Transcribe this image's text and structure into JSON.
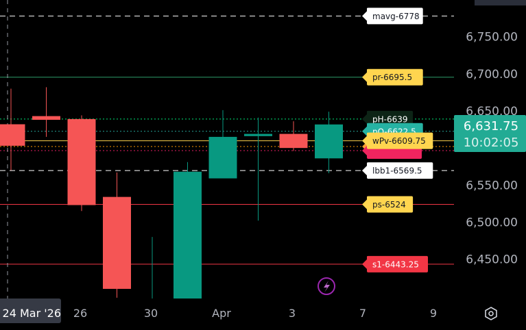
{
  "chart_data": {
    "type": "candlestick",
    "ylim": [
      6400,
      6790
    ],
    "y_ticks": [
      "6,750.00",
      "6,700.00",
      "6,650.00",
      "6,550.00",
      "6,500.00",
      "6,450.00"
    ],
    "y_tick_values": [
      6750,
      6700,
      6650,
      6550,
      6500,
      6450
    ],
    "x_ticks": [
      {
        "label": "26",
        "index": 2
      },
      {
        "label": "30",
        "index": 4
      },
      {
        "label": "Apr",
        "index": 6
      },
      {
        "label": "3",
        "index": 8
      },
      {
        "label": "7",
        "index": 10
      },
      {
        "label": "9",
        "index": 12
      }
    ],
    "crosshair_date": "24 Mar '26",
    "candles": [
      {
        "date": "Mar 24",
        "open": 6632,
        "high": 6680,
        "low": 6570,
        "close": 6603
      },
      {
        "date": "Mar 25",
        "open": 6643,
        "high": 6682,
        "low": 6615,
        "close": 6638
      },
      {
        "date": "Mar 26",
        "open": 6639,
        "high": 6644,
        "low": 6515,
        "close": 6523
      },
      {
        "date": "Mar 27",
        "open": 6534,
        "high": 6567,
        "low": 6398,
        "close": 6410
      },
      {
        "date": "Mar 30",
        "open": 6380,
        "high": 6480,
        "low": 6360,
        "close": 6395
      },
      {
        "date": "Mar 31",
        "open": 6390,
        "high": 6581,
        "low": 6380,
        "close": 6568
      },
      {
        "date": "Apr 1",
        "open": 6559,
        "high": 6651,
        "low": 6559,
        "close": 6615
      },
      {
        "date": "Apr 2",
        "open": 6616,
        "high": 6641,
        "low": 6502,
        "close": 6619
      },
      {
        "date": "Apr 3",
        "open": 6619,
        "high": 6636,
        "low": 6596,
        "close": 6600
      },
      {
        "date": "Apr 6",
        "open": 6586,
        "high": 6649,
        "low": 6566,
        "close": 6631.75
      }
    ],
    "levels": [
      {
        "label": "mavg-6778",
        "price": 6778,
        "line_color": "#ffffff",
        "line_style": "dashed",
        "tag_bg": "#ffffff",
        "tag_fg": "#131722"
      },
      {
        "label": "pr-6695.5",
        "price": 6695.5,
        "line_color": "#2e9e6a",
        "line_style": "solid",
        "tag_bg": "#ffd54f",
        "tag_fg": "#131722"
      },
      {
        "label": "pH-6639",
        "price": 6639,
        "line_color": "#00e676",
        "line_style": "dotted",
        "tag_bg": "#0d2416",
        "tag_fg": "#ffffff"
      },
      {
        "label": "pO-6622.5",
        "price": 6622.5,
        "line_color": "#26a69a",
        "line_style": "dotted",
        "tag_bg": "#26b3a3",
        "tag_fg": "#ffffff"
      },
      {
        "label": "",
        "price": 6602,
        "line_color": "#ff9800",
        "line_style": "dotted",
        "tag_bg": "#ff9f33",
        "tag_fg": "#131722"
      },
      {
        "label": "",
        "price": 6596.5,
        "line_color": "#e91e63",
        "line_style": "dotted",
        "tag_bg": "#f0245f",
        "tag_fg": "#ffffff"
      },
      {
        "label": "wPv-6609.75",
        "price": 6609.75,
        "line_color": "#ffd54f",
        "line_style": "solid",
        "tag_bg": "#ffd54f",
        "tag_fg": "#131722"
      },
      {
        "label": "lbb1-6569.5",
        "price": 6569.5,
        "line_color": "#ffffff",
        "line_style": "dashed",
        "tag_bg": "#ffffff",
        "tag_fg": "#131722"
      },
      {
        "label": "ps-6524",
        "price": 6524,
        "line_color": "#f23645",
        "line_style": "solid",
        "tag_bg": "#ffd54f",
        "tag_fg": "#131722"
      },
      {
        "label": "s1-6443.25",
        "price": 6443.25,
        "line_color": "#f23645",
        "line_style": "solid",
        "tag_bg": "#f23645",
        "tag_fg": "#ffffff"
      }
    ],
    "last_price": {
      "value": "6,631.75",
      "countdown": "10:02:05",
      "price": 6631.75,
      "color": "#22ab94"
    },
    "colors": {
      "up": "#089981",
      "down": "#f55555",
      "grid": "#000000",
      "axis_text": "#b2b5be"
    }
  },
  "icons": {
    "settings": "hexagon-settings-icon",
    "alert": "lightning-icon"
  }
}
